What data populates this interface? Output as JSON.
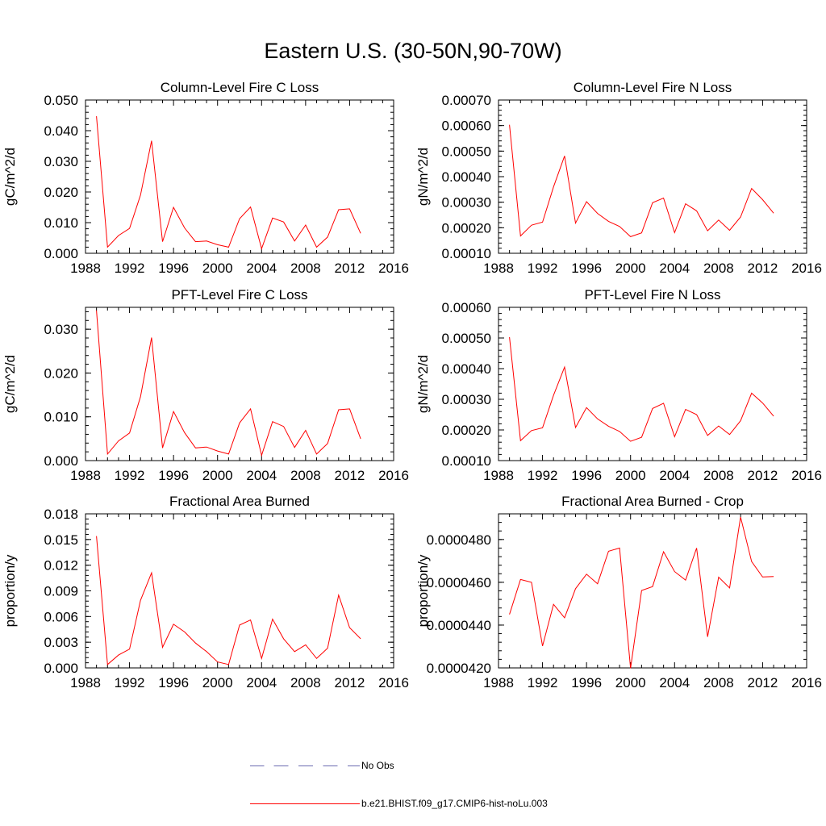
{
  "page_title": "Eastern U.S. (30-50N,90-70W)",
  "colors": {
    "model": "#ff0000",
    "obs": "#6b6bb0",
    "axis": "#000000"
  },
  "legend": {
    "items": [
      {
        "label": "No Obs",
        "style": "dashed",
        "color": "#6b6bb0"
      },
      {
        "label": "b.e21.BHIST.f09_g17.CMIP6-hist-noLu.003",
        "style": "solid",
        "color": "#ff0000"
      }
    ]
  },
  "chart_data": [
    {
      "type": "line",
      "title": "Column-Level Fire C Loss",
      "ylabel": "gC/m^2/d",
      "xlim": [
        1988,
        2016
      ],
      "ylim": [
        0.0,
        0.05
      ],
      "xticks": [
        "1988",
        "1992",
        "1996",
        "2000",
        "2004",
        "2008",
        "2012",
        "2016"
      ],
      "yticks": [
        "0.000",
        "0.010",
        "0.020",
        "0.030",
        "0.040",
        "0.050"
      ],
      "x": [
        1989,
        1990,
        1991,
        1992,
        1993,
        1994,
        1995,
        1996,
        1997,
        1998,
        1999,
        2000,
        2001,
        2002,
        2003,
        2004,
        2005,
        2006,
        2007,
        2008,
        2009,
        2010,
        2011,
        2012,
        2013
      ],
      "series": [
        {
          "values": [
            0.0447,
            0.002,
            0.0058,
            0.0081,
            0.019,
            0.0367,
            0.0038,
            0.015,
            0.0083,
            0.0038,
            0.004,
            0.0028,
            0.002,
            0.0113,
            0.0151,
            0.0015,
            0.0115,
            0.0102,
            0.004,
            0.0092,
            0.002,
            0.0053,
            0.0142,
            0.0145,
            0.0065
          ]
        }
      ]
    },
    {
      "type": "line",
      "title": "Column-Level Fire N Loss",
      "ylabel": "gN/m^2/d",
      "xlim": [
        1988,
        2016
      ],
      "ylim": [
        0.0001,
        0.0007
      ],
      "xticks": [
        "1988",
        "1992",
        "1996",
        "2000",
        "2004",
        "2008",
        "2012",
        "2016"
      ],
      "yticks": [
        "0.00010",
        "0.00020",
        "0.00030",
        "0.00040",
        "0.00050",
        "0.00060",
        "0.00070"
      ],
      "x": [
        1989,
        1990,
        1991,
        1992,
        1993,
        1994,
        1995,
        1996,
        1997,
        1998,
        1999,
        2000,
        2001,
        2002,
        2003,
        2004,
        2005,
        2006,
        2007,
        2008,
        2009,
        2010,
        2011,
        2012,
        2013
      ],
      "series": [
        {
          "values": [
            0.000603,
            0.000168,
            0.00021,
            0.000222,
            0.00036,
            0.000481,
            0.000218,
            0.000302,
            0.000256,
            0.000225,
            0.000205,
            0.000165,
            0.00018,
            0.000298,
            0.000316,
            0.000181,
            0.000294,
            0.000266,
            0.000188,
            0.00023,
            0.00019,
            0.000242,
            0.000354,
            0.00031,
            0.000257
          ]
        }
      ]
    },
    {
      "type": "line",
      "title": "PFT-Level Fire C Loss",
      "ylabel": "gC/m^2/d",
      "xlim": [
        1988,
        2016
      ],
      "ylim": [
        0.0,
        0.035
      ],
      "xticks": [
        "1988",
        "1992",
        "1996",
        "2000",
        "2004",
        "2008",
        "2012",
        "2016"
      ],
      "yticks": [
        "0.000",
        "0.010",
        "0.020",
        "0.030"
      ],
      "x": [
        1989,
        1990,
        1991,
        1992,
        1993,
        1994,
        1995,
        1996,
        1997,
        1998,
        1999,
        2000,
        2001,
        2002,
        2003,
        2004,
        2005,
        2006,
        2007,
        2008,
        2009,
        2010,
        2011,
        2012,
        2013
      ],
      "series": [
        {
          "values": [
            0.0343,
            0.0015,
            0.0045,
            0.0063,
            0.0146,
            0.0281,
            0.0029,
            0.0112,
            0.0064,
            0.0029,
            0.0031,
            0.0022,
            0.0015,
            0.0086,
            0.0118,
            0.0012,
            0.0089,
            0.0078,
            0.003,
            0.0069,
            0.0015,
            0.0039,
            0.0116,
            0.0118,
            0.005
          ]
        }
      ]
    },
    {
      "type": "line",
      "title": "PFT-Level Fire N Loss",
      "ylabel": "gN/m^2/d",
      "xlim": [
        1988,
        2016
      ],
      "ylim": [
        0.0001,
        0.0006
      ],
      "xticks": [
        "1988",
        "1992",
        "1996",
        "2000",
        "2004",
        "2008",
        "2012",
        "2016"
      ],
      "yticks": [
        "0.00010",
        "0.00020",
        "0.00030",
        "0.00040",
        "0.00050",
        "0.00060"
      ],
      "x": [
        1989,
        1990,
        1991,
        1992,
        1993,
        1994,
        1995,
        1996,
        1997,
        1998,
        1999,
        2000,
        2001,
        2002,
        2003,
        2004,
        2005,
        2006,
        2007,
        2008,
        2009,
        2010,
        2011,
        2012,
        2013
      ],
      "series": [
        {
          "values": [
            0.000503,
            0.000165,
            0.000198,
            0.000207,
            0.000313,
            0.000405,
            0.000208,
            0.000273,
            0.000236,
            0.000212,
            0.000195,
            0.000163,
            0.000176,
            0.00027,
            0.000287,
            0.000178,
            0.000267,
            0.00025,
            0.000182,
            0.000213,
            0.000185,
            0.00023,
            0.00032,
            0.000288,
            0.000245
          ]
        }
      ]
    },
    {
      "type": "line",
      "title": "Fractional Area Burned",
      "ylabel": "proportion/y",
      "xlim": [
        1988,
        2016
      ],
      "ylim": [
        0.0,
        0.018
      ],
      "xticks": [
        "1988",
        "1992",
        "1996",
        "2000",
        "2004",
        "2008",
        "2012",
        "2016"
      ],
      "yticks": [
        "0.000",
        "0.003",
        "0.006",
        "0.009",
        "0.012",
        "0.015",
        "0.018"
      ],
      "x": [
        1989,
        1990,
        1991,
        1992,
        1993,
        1994,
        1995,
        1996,
        1997,
        1998,
        1999,
        2000,
        2001,
        2002,
        2003,
        2004,
        2005,
        2006,
        2007,
        2008,
        2009,
        2010,
        2011,
        2012,
        2013
      ],
      "series": [
        {
          "values": [
            0.0154,
            0.0004,
            0.0015,
            0.0022,
            0.0079,
            0.0111,
            0.0024,
            0.0051,
            0.0042,
            0.0029,
            0.0019,
            0.0007,
            0.0004,
            0.005,
            0.0056,
            0.0011,
            0.0057,
            0.0034,
            0.0019,
            0.0027,
            0.0011,
            0.0023,
            0.0085,
            0.0047,
            0.0034
          ]
        }
      ]
    },
    {
      "type": "line",
      "title": "Fractional Area Burned - Crop",
      "ylabel": "proportion/y",
      "xlim": [
        1988,
        2016
      ],
      "ylim": [
        4.2e-05,
        4.92e-05
      ],
      "xticks": [
        "1988",
        "1992",
        "1996",
        "2000",
        "2004",
        "2008",
        "2012",
        "2016"
      ],
      "yticks": [
        "0.0000420",
        "0.0000440",
        "0.0000460",
        "0.0000480"
      ],
      "x": [
        1989,
        1990,
        1991,
        1992,
        1993,
        1994,
        1995,
        1996,
        1997,
        1998,
        1999,
        2000,
        2001,
        2002,
        2003,
        2004,
        2005,
        2006,
        2007,
        2008,
        2009,
        2010,
        2011,
        2012,
        2013
      ],
      "series": [
        {
          "values": [
            4.45e-05,
            4.613e-05,
            4.6e-05,
            4.302e-05,
            4.497e-05,
            4.434e-05,
            4.57e-05,
            4.638e-05,
            4.593e-05,
            4.745e-05,
            4.76e-05,
            4.198e-05,
            4.562e-05,
            4.58e-05,
            4.743e-05,
            4.65e-05,
            4.61e-05,
            4.76e-05,
            4.345e-05,
            4.624e-05,
            4.574e-05,
            4.905e-05,
            4.697e-05,
            4.625e-05,
            4.627e-05
          ]
        }
      ]
    }
  ]
}
